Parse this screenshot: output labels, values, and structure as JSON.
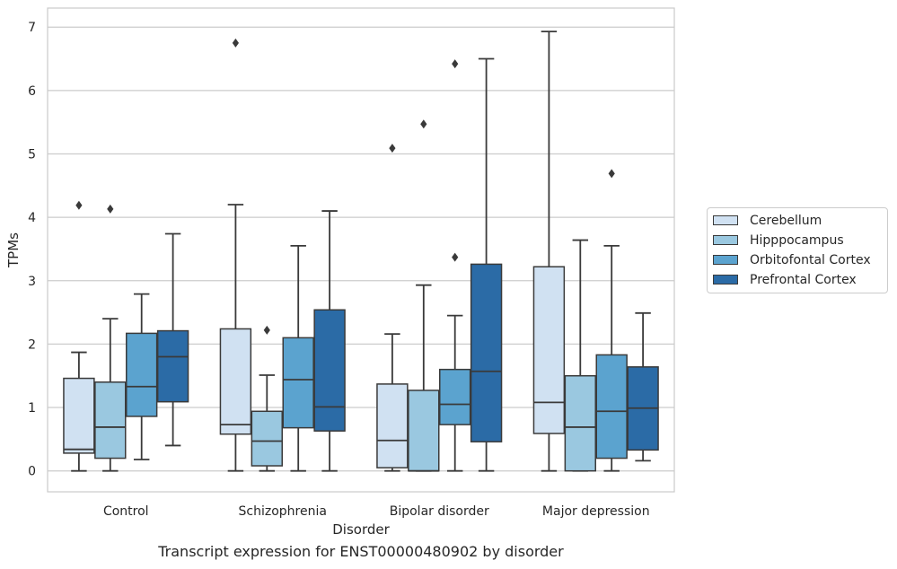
{
  "caption": "Transcript expression for ENST00000480902 by disorder",
  "chart_data": {
    "type": "boxplot",
    "xlabel": "Disorder",
    "ylabel": "TPMs",
    "ylim": [
      -0.33,
      7.3
    ],
    "yticks": [
      0,
      1,
      2,
      3,
      4,
      5,
      6,
      7
    ],
    "grid": "horizontal",
    "legend_position": "right",
    "categories": [
      "Control",
      "Schizophrenia",
      "Bipolar disorder",
      "Major depression"
    ],
    "series": [
      {
        "name": "Cerebellum",
        "color": "#d0e1f2",
        "boxes": [
          {
            "whislo": 0,
            "q1": 0.28,
            "med": 0.34,
            "q3": 1.46,
            "whishi": 1.87,
            "fliers": [
              4.19
            ]
          },
          {
            "whislo": 0,
            "q1": 0.58,
            "med": 0.73,
            "q3": 2.24,
            "whishi": 4.2,
            "fliers": [
              6.75
            ]
          },
          {
            "whislo": 0,
            "q1": 0.05,
            "med": 0.48,
            "q3": 1.37,
            "whishi": 2.16,
            "fliers": [
              5.09
            ]
          },
          {
            "whislo": 0,
            "q1": 0.59,
            "med": 1.08,
            "q3": 3.22,
            "whishi": 6.93,
            "fliers": []
          }
        ]
      },
      {
        "name": "Hipppocampus",
        "color": "#9ac8e0",
        "boxes": [
          {
            "whislo": 0,
            "q1": 0.2,
            "med": 0.69,
            "q3": 1.4,
            "whishi": 2.4,
            "fliers": [
              4.13
            ]
          },
          {
            "whislo": 0,
            "q1": 0.08,
            "med": 0.47,
            "q3": 0.94,
            "whishi": 1.51,
            "fliers": [
              2.22
            ]
          },
          {
            "whislo": 0,
            "q1": 0,
            "med": 0,
            "q3": 1.27,
            "whishi": 2.93,
            "fliers": [
              5.47
            ]
          },
          {
            "whislo": 0,
            "q1": 0,
            "med": 0.69,
            "q3": 1.5,
            "whishi": 3.64,
            "fliers": []
          }
        ]
      },
      {
        "name": "Orbitofontal Cortex",
        "color": "#5ba3cf",
        "boxes": [
          {
            "whislo": 0.18,
            "q1": 0.86,
            "med": 1.33,
            "q3": 2.17,
            "whishi": 2.79,
            "fliers": []
          },
          {
            "whislo": 0,
            "q1": 0.68,
            "med": 1.44,
            "q3": 2.1,
            "whishi": 3.55,
            "fliers": []
          },
          {
            "whislo": 0,
            "q1": 0.73,
            "med": 1.05,
            "q3": 1.6,
            "whishi": 2.45,
            "fliers": [
              3.37,
              6.42
            ]
          },
          {
            "whislo": 0,
            "q1": 0.2,
            "med": 0.94,
            "q3": 1.83,
            "whishi": 3.55,
            "fliers": [
              4.69
            ]
          }
        ]
      },
      {
        "name": "Prefrontal Cortex",
        "color": "#2b6ba6",
        "boxes": [
          {
            "whislo": 0.4,
            "q1": 1.09,
            "med": 1.8,
            "q3": 2.21,
            "whishi": 3.74,
            "fliers": []
          },
          {
            "whislo": 0,
            "q1": 0.63,
            "med": 1.01,
            "q3": 2.54,
            "whishi": 4.1,
            "fliers": []
          },
          {
            "whislo": 0,
            "q1": 0.46,
            "med": 1.57,
            "q3": 3.26,
            "whishi": 6.5,
            "fliers": []
          },
          {
            "whislo": 0.16,
            "q1": 0.33,
            "med": 0.99,
            "q3": 1.64,
            "whishi": 2.49,
            "fliers": []
          }
        ]
      }
    ]
  }
}
